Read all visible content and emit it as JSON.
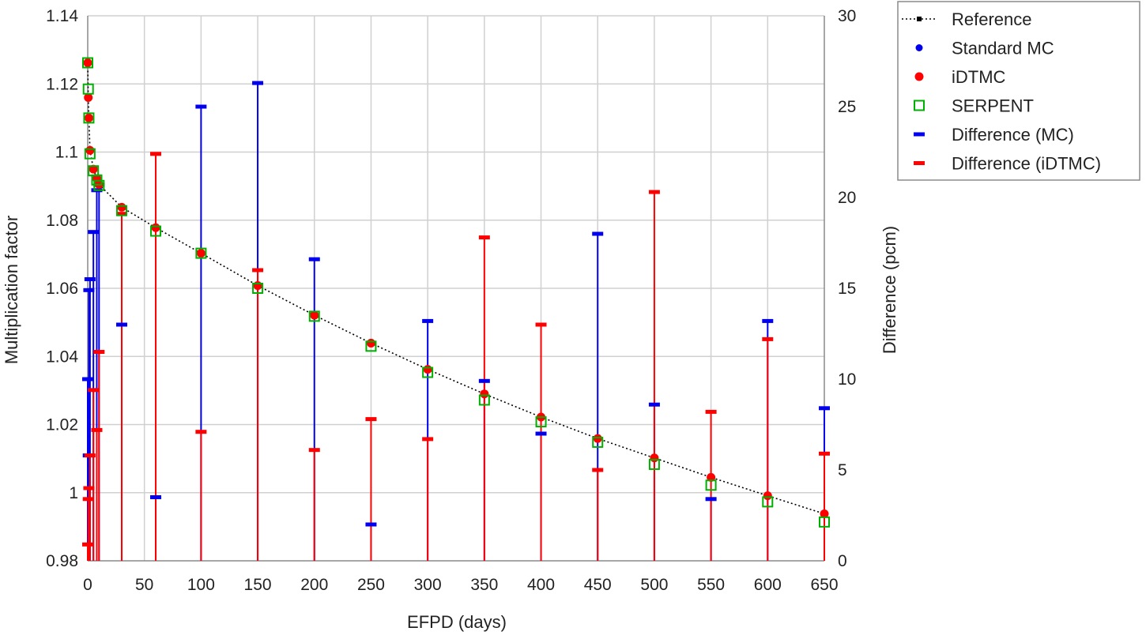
{
  "chart_data": {
    "type": "scatter",
    "title": "",
    "xlabel": "EFPD (days)",
    "ylabel": "Multiplication factor",
    "y2label": "Difference (pcm)",
    "xlim": [
      0,
      650
    ],
    "ylim": [
      0.98,
      1.14
    ],
    "y2lim": [
      0,
      30
    ],
    "x_ticks": [
      0,
      50,
      100,
      150,
      200,
      250,
      300,
      350,
      400,
      450,
      500,
      550,
      600,
      650
    ],
    "y_ticks": [
      0.98,
      1,
      1.02,
      1.04,
      1.06,
      1.08,
      1.1,
      1.12,
      1.14
    ],
    "y_tick_labels": [
      "0.98",
      "1",
      "1.02",
      "1.04",
      "1.06",
      "1.08",
      "1.1",
      "1.12",
      "1.14"
    ],
    "y2_ticks": [
      0,
      5,
      10,
      15,
      20,
      25,
      30
    ],
    "grid": true,
    "legend_position": "outside-top-right",
    "colors": {
      "reference": "#000000",
      "mc": "#0000ee",
      "idtmc": "#ff0000",
      "serpent": "#00b000"
    },
    "x": [
      0,
      0.5,
      1,
      2,
      5,
      8,
      10,
      30,
      60,
      100,
      150,
      200,
      250,
      300,
      350,
      400,
      450,
      500,
      550,
      600,
      650
    ],
    "series": [
      {
        "name": "Reference",
        "axis": "left",
        "values": [
          1.1262,
          1.116,
          1.11,
          1.1005,
          1.095,
          1.0922,
          1.0905,
          1.0838,
          1.0778,
          1.0703,
          1.0608,
          1.0521,
          1.0439,
          1.0362,
          1.029,
          1.0222,
          1.0159,
          1.0102,
          1.0045,
          0.9991,
          0.9938
        ]
      },
      {
        "name": "Standard MC",
        "axis": "left",
        "values": [
          1.1262,
          1.116,
          1.11,
          1.1005,
          1.095,
          1.0922,
          1.0905,
          1.0838,
          1.0778,
          1.0703,
          1.0608,
          1.0521,
          1.0439,
          1.0362,
          1.029,
          1.0222,
          1.0159,
          1.0102,
          1.0045,
          0.9991,
          0.9938
        ]
      },
      {
        "name": "iDTMC",
        "axis": "left",
        "values": [
          1.1262,
          1.116,
          1.11,
          1.1005,
          1.095,
          1.0922,
          1.0905,
          1.0838,
          1.0778,
          1.0703,
          1.0608,
          1.0521,
          1.0439,
          1.0362,
          1.029,
          1.0222,
          1.0159,
          1.0102,
          1.0045,
          0.9991,
          0.9938
        ]
      },
      {
        "name": "SERPENT",
        "axis": "left",
        "values": [
          1.1262,
          1.1185,
          1.11,
          1.0995,
          1.0945,
          1.0918,
          1.0902,
          1.0828,
          1.0768,
          1.0703,
          1.06,
          1.0518,
          1.043,
          1.0353,
          1.0272,
          1.0208,
          1.0148,
          1.0083,
          1.0022,
          0.9973,
          0.9914
        ]
      },
      {
        "name": "Difference (MC)",
        "axis": "right",
        "values": [
          10,
          5.8,
          14.9,
          15.5,
          18.1,
          20.4,
          20.7,
          13,
          3.5,
          25,
          26.3,
          16.6,
          2,
          13.2,
          9.9,
          7,
          18,
          8.6,
          3.4,
          13.2,
          8.4
        ]
      },
      {
        "name": "Difference (iDTMC)",
        "axis": "right",
        "values": [
          0.9,
          3.4,
          4,
          5.8,
          9.4,
          7.2,
          11.5,
          19.1,
          22.4,
          7.1,
          16,
          6.1,
          7.8,
          6.7,
          17.8,
          13,
          5,
          20.3,
          8.2,
          12.2,
          5.9
        ]
      }
    ]
  }
}
